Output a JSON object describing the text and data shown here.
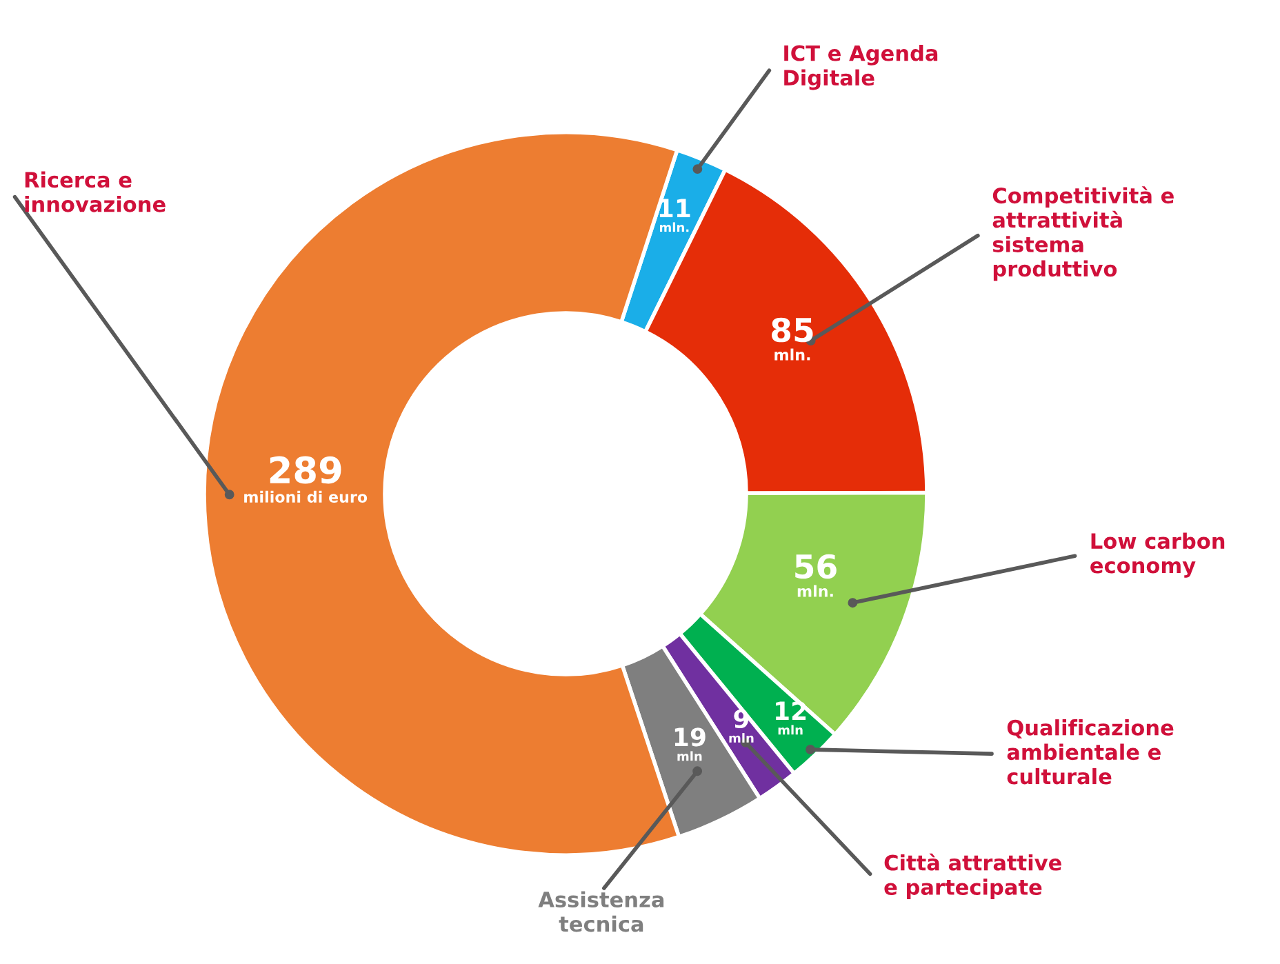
{
  "chart_data": {
    "type": "donut",
    "categories": [
      "ICT e Agenda Digitale",
      "Competitività e attrattività sistema produttivo",
      "Low carbon economy",
      "Qualificazione ambientale e culturale",
      "Città attrattive e partecipate",
      "Assistenza tecnica",
      "Ricerca e innovazione"
    ],
    "values": [
      11,
      85,
      56,
      12,
      9,
      19,
      289
    ],
    "colors": [
      "#1aaee8",
      "#e52d08",
      "#92d050",
      "#00b050",
      "#7030a0",
      "#7f7f7f",
      "#ed7d31"
    ],
    "value_labels": [
      "11 mln.",
      "85 mln.",
      "56 mln.",
      "12 mln",
      "9 mln",
      "19 mln",
      "289 milioni di euro"
    ]
  }
}
